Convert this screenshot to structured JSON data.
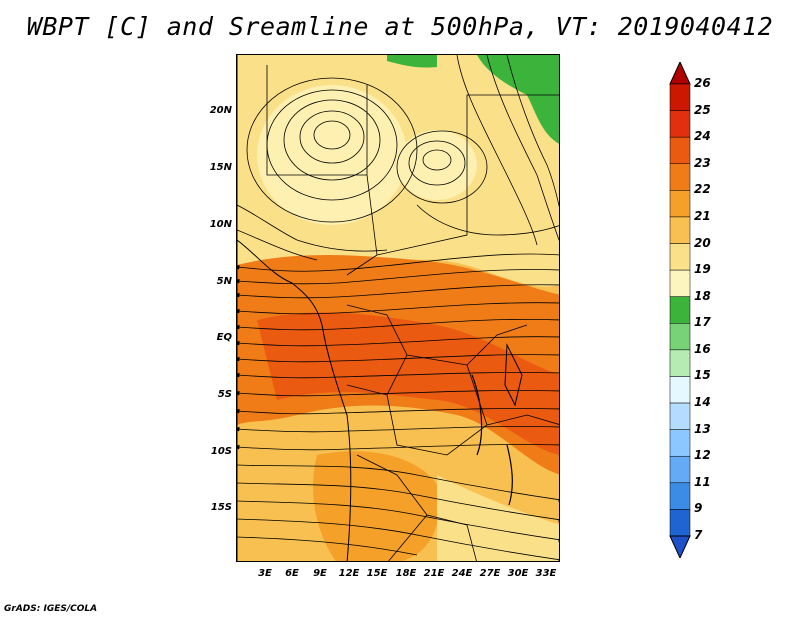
{
  "title": "WBPT [C] and Sreamline at 500hPa, VT: 2019040412",
  "credit": "GrADS: IGES/COLA",
  "axes": {
    "lat_labels": [
      "20N",
      "15N",
      "10N",
      "5N",
      "EQ",
      "5S",
      "10S",
      "15S"
    ],
    "lat_values": [
      20,
      15,
      10,
      5,
      0,
      -5,
      -10,
      -15
    ],
    "lon_labels": [
      "3E",
      "6E",
      "9E",
      "12E",
      "15E",
      "18E",
      "21E",
      "24E",
      "27E",
      "30E",
      "33E"
    ],
    "lon_values": [
      3,
      6,
      9,
      12,
      15,
      18,
      21,
      24,
      27,
      30,
      33
    ],
    "lat_range": [
      -20,
      24.5
    ],
    "lon_range": [
      0.5,
      34
    ]
  },
  "colorbar": {
    "labels": [
      "26",
      "25",
      "24",
      "23",
      "22",
      "21",
      "20",
      "19",
      "18",
      "17",
      "16",
      "15",
      "14",
      "13",
      "12",
      "11",
      "9",
      "7"
    ],
    "colors": [
      "#b00000",
      "#cc1800",
      "#e03010",
      "#ea5a10",
      "#f07c18",
      "#f5a028",
      "#f8c050",
      "#fbe08a",
      "#fdf5c0",
      "#3cb43c",
      "#78d278",
      "#b4ecb4",
      "#e6f8ff",
      "#b4dcff",
      "#8cc8ff",
      "#64aaf5",
      "#3c8ce6",
      "#2064d2",
      "#1e50c8"
    ]
  },
  "field": {
    "variable": "WBPT",
    "units": "C",
    "level": "500hPa",
    "valid_time": "2019040412"
  }
}
